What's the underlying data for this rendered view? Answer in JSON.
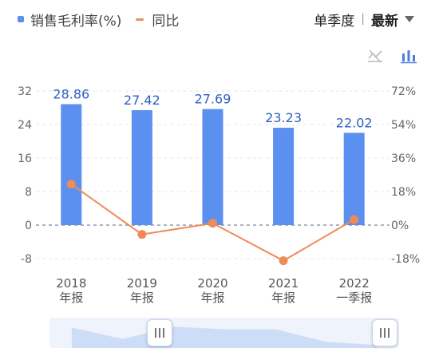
{
  "legend": {
    "bar_label": "销售毛利率(%)",
    "line_label": "同比"
  },
  "period_selector": {
    "period": "单季度",
    "mode": "最新"
  },
  "toolbar": {
    "icons": [
      "no-line-chart-icon",
      "bar-chart-icon"
    ]
  },
  "colors": {
    "bar": "#5b8ff0",
    "line": "#f08b57",
    "bar_label": "#2f5fc4",
    "slider_fill": "#cddcf7"
  },
  "chart_data": {
    "type": "bar",
    "categories": [
      [
        "2018",
        "年报"
      ],
      [
        "2019",
        "年报"
      ],
      [
        "2020",
        "年报"
      ],
      [
        "2021",
        "年报"
      ],
      [
        "2022",
        "一季报"
      ]
    ],
    "series": [
      {
        "name": "销售毛利率(%)",
        "type": "bar",
        "axis": "left",
        "values": [
          28.86,
          27.42,
          27.69,
          23.23,
          22.02
        ],
        "labels": [
          "28.86",
          "27.42",
          "27.69",
          "23.23",
          "22.02"
        ]
      },
      {
        "name": "同比",
        "type": "line",
        "axis": "right",
        "values": [
          22.0,
          -5.0,
          1.0,
          -19.1,
          3.0
        ]
      }
    ],
    "left_axis": {
      "ylim": [
        -8,
        32
      ],
      "ticks": [
        "32",
        "24",
        "16",
        "8",
        "0",
        "-8"
      ]
    },
    "right_axis": {
      "ylim": [
        -18,
        72
      ],
      "ticks": [
        "72%",
        "54%",
        "36%",
        "18%",
        "0%",
        "-18%"
      ]
    },
    "grid": true,
    "legend_position": "top-left"
  },
  "slider": {
    "series_shape": [
      0.67,
      0.3,
      0.7,
      0.62,
      0.62,
      0.2,
      0.1
    ]
  }
}
